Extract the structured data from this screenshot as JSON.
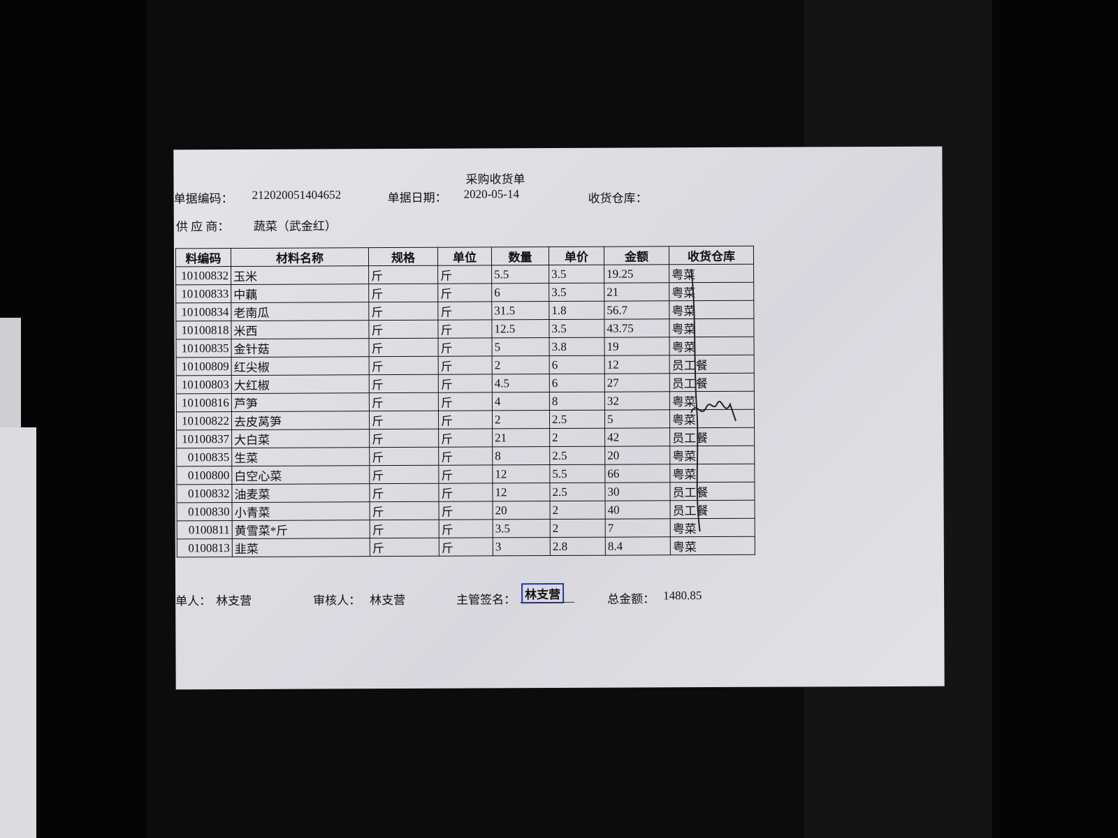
{
  "header": {
    "title": "采购收货单",
    "doc_no_label": "单据编码：",
    "doc_no": "212020051404652",
    "date_label": "单据日期：",
    "date": "2020-05-14",
    "warehouse_label": "收货仓库：",
    "supplier_label": "供 应 商：",
    "supplier": "蔬菜（武金红）"
  },
  "table": {
    "columns": [
      "料编码",
      "材料名称",
      "规格",
      "单位",
      "数量",
      "单价",
      "金额",
      "收货仓库"
    ],
    "rows": [
      [
        "10100832",
        "玉米",
        "斤",
        "斤",
        "5.5",
        "3.5",
        "19.25",
        "粤菜"
      ],
      [
        "10100833",
        "中藕",
        "斤",
        "斤",
        "6",
        "3.5",
        "21",
        "粤菜"
      ],
      [
        "10100834",
        "老南瓜",
        "斤",
        "斤",
        "31.5",
        "1.8",
        "56.7",
        "粤菜"
      ],
      [
        "10100818",
        "米西",
        "斤",
        "斤",
        "12.5",
        "3.5",
        "43.75",
        "粤菜"
      ],
      [
        "10100835",
        "金针菇",
        "斤",
        "斤",
        "5",
        "3.8",
        "19",
        "粤菜"
      ],
      [
        "10100809",
        "红尖椒",
        "斤",
        "斤",
        "2",
        "6",
        "12",
        "员工餐"
      ],
      [
        "10100803",
        "大红椒",
        "斤",
        "斤",
        "4.5",
        "6",
        "27",
        "员工餐"
      ],
      [
        "10100816",
        "芦笋",
        "斤",
        "斤",
        "4",
        "8",
        "32",
        "粤菜"
      ],
      [
        "10100822",
        "去皮莴笋",
        "斤",
        "斤",
        "2",
        "2.5",
        "5",
        "粤菜"
      ],
      [
        "10100837",
        "大白菜",
        "斤",
        "斤",
        "21",
        "2",
        "42",
        "员工餐"
      ],
      [
        "0100835",
        "生菜",
        "斤",
        "斤",
        "8",
        "2.5",
        "20",
        "粤菜"
      ],
      [
        "0100800",
        "白空心菜",
        "斤",
        "斤",
        "12",
        "5.5",
        "66",
        "粤菜"
      ],
      [
        "0100832",
        "油麦菜",
        "斤",
        "斤",
        "12",
        "2.5",
        "30",
        "员工餐"
      ],
      [
        "0100830",
        "小青菜",
        "斤",
        "斤",
        "20",
        "2",
        "40",
        "员工餐"
      ],
      [
        "0100811",
        "黄雪菜*斤",
        "斤",
        "斤",
        "3.5",
        "2",
        "7",
        "粤菜"
      ],
      [
        "0100813",
        "韭菜",
        "斤",
        "斤",
        "3",
        "2.8",
        "8.4",
        "粤菜"
      ]
    ]
  },
  "footer": {
    "maker_label": "单人：",
    "maker": "林支营",
    "reviewer_label": "审核人：",
    "reviewer": "林支营",
    "manager_label": "主管签名：",
    "manager_stamp": "林支营",
    "total_label": "总金额：",
    "total": "1480.85"
  }
}
